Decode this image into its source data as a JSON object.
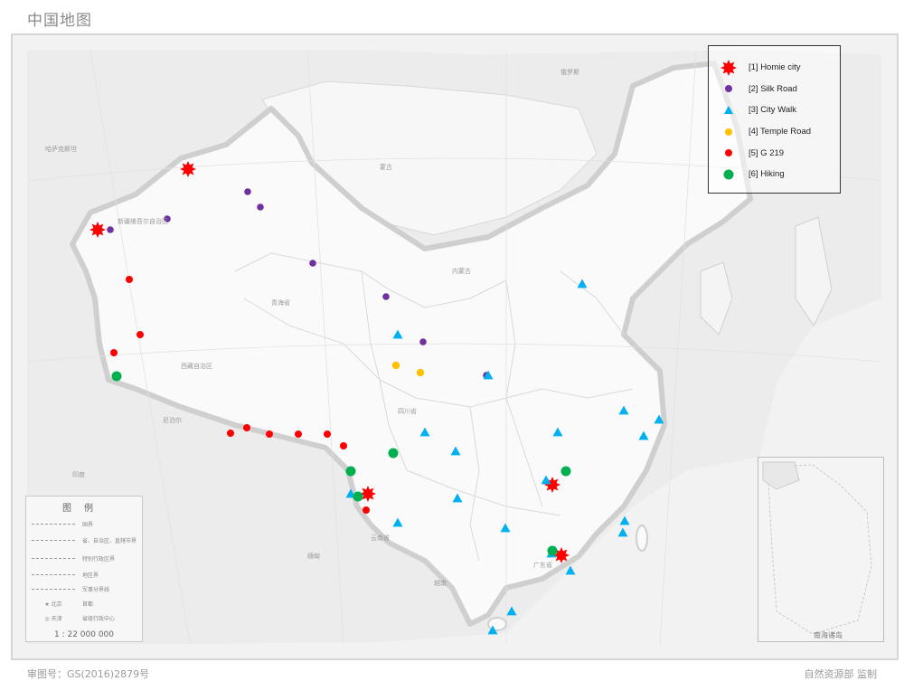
{
  "map_title": "中国地图",
  "footer": {
    "approval_number": "审图号：GS(2016)2879号",
    "supervisor": "自然资源部 监制"
  },
  "scale": "1 : 22 000 000",
  "inset_label": "南海诸岛",
  "basemap_legend": {
    "title": "图例",
    "rows": [
      "国界",
      "省、自治区、直辖市界",
      "特别行政区界",
      "地区界",
      "军事分界线",
      "首都",
      "省级行政中心"
    ],
    "capital_label": "北京",
    "city_label": "天津"
  },
  "legend": {
    "items": [
      {
        "id": "homie",
        "label": "[1] Homie city",
        "symbol": "star-icon",
        "color": "#ff0000"
      },
      {
        "id": "silk",
        "label": "[2] Silk Road",
        "symbol": "dot-icon",
        "color": "#7030a0"
      },
      {
        "id": "walk",
        "label": "[3] City Walk",
        "symbol": "triangle-icon",
        "color": "#00b0f0"
      },
      {
        "id": "temple",
        "label": "[4] Temple Road",
        "symbol": "dot-icon",
        "color": "#ffc000"
      },
      {
        "id": "g219",
        "label": "[5] G 219",
        "symbol": "dot-icon",
        "color": "#ff0000"
      },
      {
        "id": "hiking",
        "label": "[6] Hiking",
        "symbol": "dot-icon",
        "color": "#00b050"
      }
    ]
  },
  "places": [
    "新疆维吾尔自治区",
    "西藏自治区",
    "青海省",
    "四川省",
    "云南省",
    "广东省",
    "内蒙古",
    "蒙古",
    "俄罗斯",
    "哈萨克斯坦",
    "印度",
    "尼泊尔",
    "缅甸",
    "越南"
  ]
}
